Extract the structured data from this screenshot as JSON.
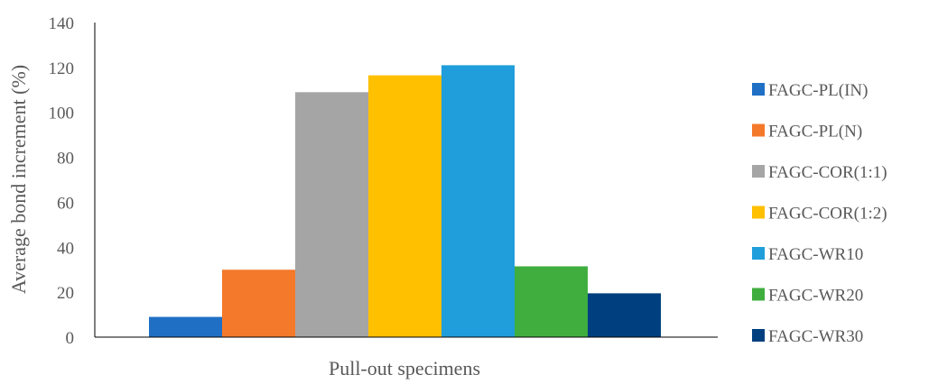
{
  "chart_data": {
    "type": "bar",
    "title": "",
    "xlabel": "Pull-out specimens",
    "ylabel": "Average bond increment (%)",
    "ylim": [
      0,
      140
    ],
    "yticks": [
      0,
      20,
      40,
      60,
      80,
      100,
      120,
      140
    ],
    "grid": false,
    "legend_position": "right",
    "series": [
      {
        "name": "FAGC-PL(IN)",
        "value": 9,
        "color": "#1f6fc5"
      },
      {
        "name": "FAGC-PL(N)",
        "value": 30,
        "color": "#f4792a"
      },
      {
        "name": "FAGC-COR(1:1)",
        "value": 109,
        "color": "#a5a5a5"
      },
      {
        "name": "FAGC-COR(1:2)",
        "value": 116.5,
        "color": "#ffc000"
      },
      {
        "name": "FAGC-WR10",
        "value": 121,
        "color": "#1f9edb"
      },
      {
        "name": "FAGC-WR20",
        "value": 31.5,
        "color": "#3fae3f"
      },
      {
        "name": "FAGC-WR30",
        "value": 19.5,
        "color": "#003f7f"
      }
    ]
  }
}
